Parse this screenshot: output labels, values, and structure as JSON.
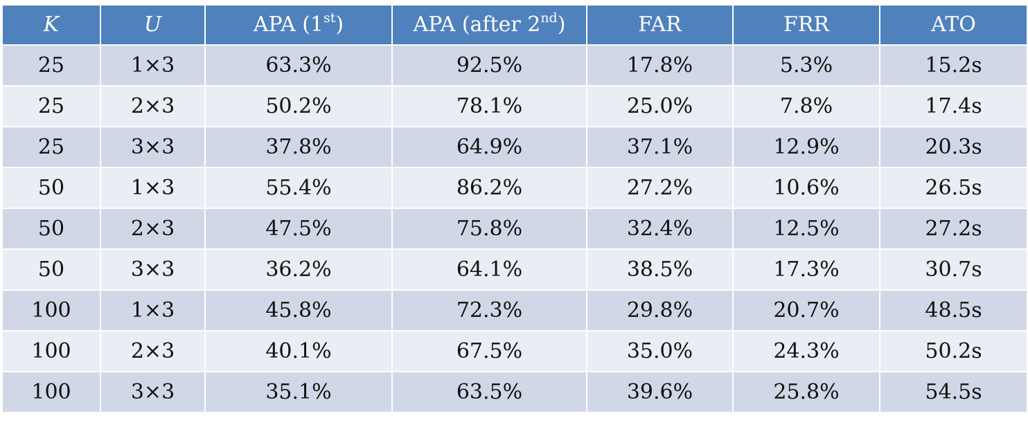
{
  "table": {
    "headers": {
      "k": "K",
      "u": "U",
      "apa1_main": "APA (1",
      "apa1_sup": "st",
      "apa1_close": ")",
      "apa2_main": "APA (after 2",
      "apa2_sup": "nd",
      "apa2_close": ")",
      "far": "FAR",
      "frr": "FRR",
      "ato": "ATO"
    },
    "rows": [
      {
        "k": "25",
        "u": "1×3",
        "apa1": "63.3%",
        "apa2": "92.5%",
        "far": "17.8%",
        "frr": "5.3%",
        "ato": "15.2s"
      },
      {
        "k": "25",
        "u": "2×3",
        "apa1": "50.2%",
        "apa2": "78.1%",
        "far": "25.0%",
        "frr": "7.8%",
        "ato": "17.4s"
      },
      {
        "k": "25",
        "u": "3×3",
        "apa1": "37.8%",
        "apa2": "64.9%",
        "far": "37.1%",
        "frr": "12.9%",
        "ato": "20.3s"
      },
      {
        "k": "50",
        "u": "1×3",
        "apa1": "55.4%",
        "apa2": "86.2%",
        "far": "27.2%",
        "frr": "10.6%",
        "ato": "26.5s"
      },
      {
        "k": "50",
        "u": "2×3",
        "apa1": "47.5%",
        "apa2": "75.8%",
        "far": "32.4%",
        "frr": "12.5%",
        "ato": "27.2s"
      },
      {
        "k": "50",
        "u": "3×3",
        "apa1": "36.2%",
        "apa2": "64.1%",
        "far": "38.5%",
        "frr": "17.3%",
        "ato": "30.7s"
      },
      {
        "k": "100",
        "u": "1×3",
        "apa1": "45.8%",
        "apa2": "72.3%",
        "far": "29.8%",
        "frr": "20.7%",
        "ato": "48.5s"
      },
      {
        "k": "100",
        "u": "2×3",
        "apa1": "40.1%",
        "apa2": "67.5%",
        "far": "35.0%",
        "frr": "24.3%",
        "ato": "50.2s"
      },
      {
        "k": "100",
        "u": "3×3",
        "apa1": "35.1%",
        "apa2": "63.5%",
        "far": "39.6%",
        "frr": "25.8%",
        "ato": "54.5s"
      }
    ]
  },
  "colors": {
    "header_bg": "#4f81bd",
    "header_text": "#ffffff",
    "row_band_dark": "#d0d8e8",
    "row_band_light": "#e9edf4",
    "cell_border": "#ffffff"
  }
}
